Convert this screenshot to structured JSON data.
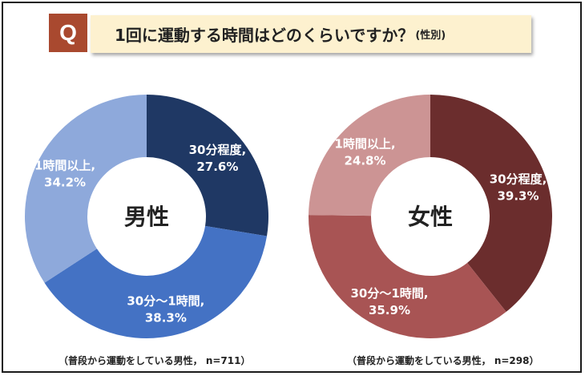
{
  "header": {
    "q_label": "Q",
    "title": "1回に運動する時間はどのくらいですか？",
    "subtitle": "(性別)"
  },
  "chart_data": [
    {
      "type": "pie",
      "center_label": "男性",
      "categories": [
        "30分程度",
        "30分～1時間",
        "1時間以上"
      ],
      "values": [
        27.6,
        38.3,
        34.2
      ],
      "value_labels": [
        "27.6%",
        "38.3%",
        "34.2%"
      ],
      "colors": [
        "#1f3864",
        "#4472c4",
        "#8ea9db"
      ],
      "note": "（普段から運動をしている男性， n=711）"
    },
    {
      "type": "pie",
      "center_label": "女性",
      "categories": [
        "30分程度",
        "30分～1時間",
        "1時間以上"
      ],
      "values": [
        39.3,
        35.9,
        24.8
      ],
      "value_labels": [
        "39.3%",
        "35.9%",
        "24.8%"
      ],
      "colors": [
        "#6b2d2d",
        "#a85454",
        "#cc9494"
      ],
      "note": "（普段から運動をしている男性， n=298）"
    }
  ]
}
